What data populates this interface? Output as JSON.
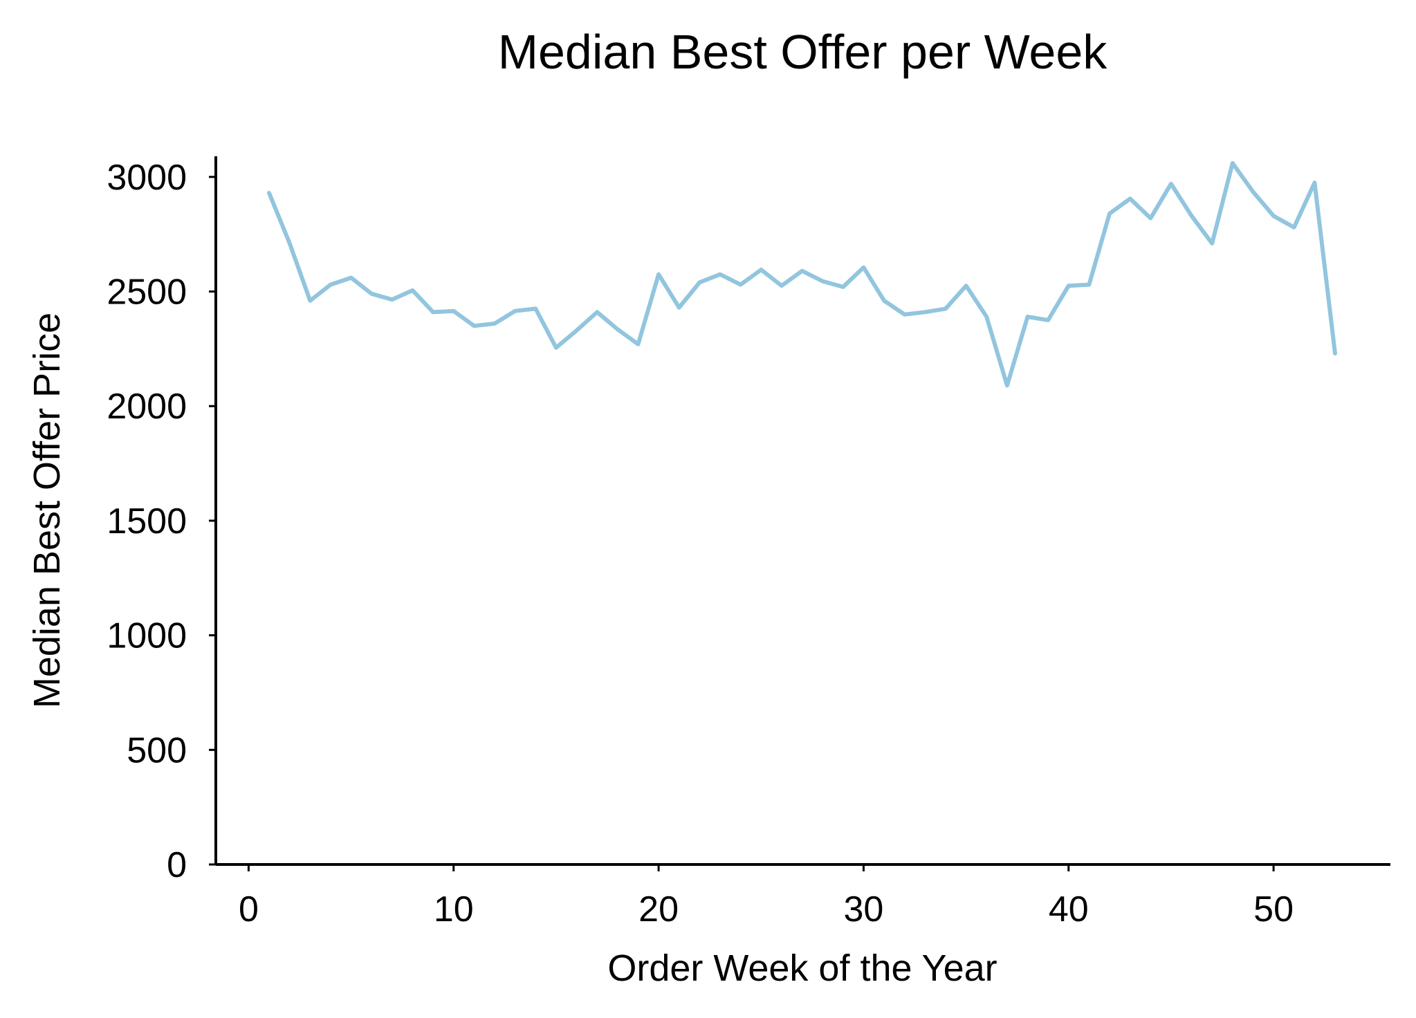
{
  "chart_data": {
    "type": "line",
    "title": "Median Best Offer per Week",
    "xlabel": "Order Week of the Year",
    "ylabel": "Median Best Offer Price",
    "xlim": [
      -1.6,
      55.7
    ],
    "ylim": [
      0,
      3090
    ],
    "xticks": [
      0,
      10,
      20,
      30,
      40,
      50
    ],
    "yticks": [
      0,
      500,
      1000,
      1500,
      2000,
      2500,
      3000
    ],
    "grid": false,
    "series": [
      {
        "color": "#92c5de",
        "x": [
          1,
          2,
          3,
          4,
          5,
          6,
          7,
          8,
          9,
          10,
          11,
          12,
          13,
          14,
          15,
          16,
          17,
          18,
          19,
          20,
          21,
          22,
          23,
          24,
          25,
          26,
          27,
          28,
          29,
          30,
          31,
          32,
          33,
          34,
          35,
          36,
          37,
          38,
          39,
          40,
          41,
          42,
          43,
          44,
          45,
          46,
          47,
          48,
          49,
          50,
          51,
          52,
          53
        ],
        "values": [
          2930,
          2710,
          2460,
          2530,
          2560,
          2490,
          2465,
          2505,
          2410,
          2415,
          2350,
          2360,
          2415,
          2425,
          2255,
          2330,
          2410,
          2335,
          2270,
          2575,
          2430,
          2540,
          2575,
          2530,
          2595,
          2525,
          2590,
          2545,
          2520,
          2605,
          2460,
          2400,
          2410,
          2425,
          2525,
          2390,
          2090,
          2390,
          2375,
          2525,
          2530,
          2840,
          2905,
          2820,
          2970,
          2830,
          2710,
          3060,
          2935,
          2830,
          2780,
          2975,
          2230
        ]
      }
    ]
  }
}
